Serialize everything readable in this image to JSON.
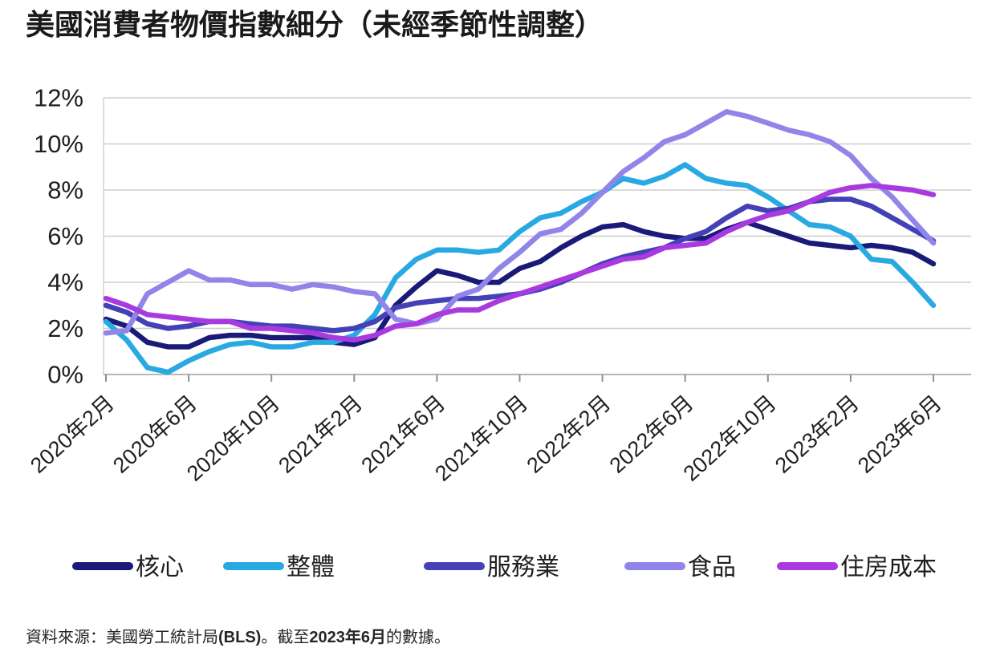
{
  "chart_data": {
    "type": "line",
    "title": "美國消費者物價指數細分（未經季節性調整）",
    "x_start": "2020年2月",
    "x_end": "2023年6月",
    "x_interval": "monthly",
    "x_tick_labels": [
      "2020年2月",
      "2020年6月",
      "2020年10月",
      "2021年2月",
      "2021年6月",
      "2021年10月",
      "2022年2月",
      "2022年6月",
      "2022年10月",
      "2023年2月",
      "2023年6月"
    ],
    "x_tick_indices": [
      0,
      4,
      8,
      12,
      16,
      20,
      24,
      28,
      32,
      36,
      40
    ],
    "y_tick_labels": [
      "0%",
      "2%",
      "4%",
      "6%",
      "8%",
      "10%",
      "12%"
    ],
    "ylim": [
      0,
      12
    ],
    "y_unit": "%",
    "grid": "horizontal",
    "legend_position": "bottom",
    "series": [
      {
        "name": "核心",
        "color": "#1a1a78",
        "values": [
          2.4,
          2.1,
          1.4,
          1.2,
          1.2,
          1.6,
          1.7,
          1.7,
          1.6,
          1.6,
          1.6,
          1.4,
          1.3,
          1.6,
          3.0,
          3.8,
          4.5,
          4.3,
          4.0,
          4.0,
          4.6,
          4.9,
          5.5,
          6.0,
          6.4,
          6.5,
          6.2,
          6.0,
          5.9,
          5.9,
          6.3,
          6.6,
          6.3,
          6.0,
          5.7,
          5.6,
          5.5,
          5.6,
          5.5,
          5.3,
          4.8
        ]
      },
      {
        "name": "整體",
        "color": "#29a9e2",
        "values": [
          2.3,
          1.5,
          0.3,
          0.1,
          0.6,
          1.0,
          1.3,
          1.4,
          1.2,
          1.2,
          1.4,
          1.4,
          1.7,
          2.6,
          4.2,
          5.0,
          5.4,
          5.4,
          5.3,
          5.4,
          6.2,
          6.8,
          7.0,
          7.5,
          7.9,
          8.5,
          8.3,
          8.6,
          9.1,
          8.5,
          8.3,
          8.2,
          7.7,
          7.1,
          6.5,
          6.4,
          6.0,
          5.0,
          4.9,
          4.0,
          3.0
        ]
      },
      {
        "name": "服務業",
        "color": "#4441b6",
        "values": [
          3.0,
          2.7,
          2.2,
          2.0,
          2.1,
          2.3,
          2.3,
          2.2,
          2.1,
          2.1,
          2.0,
          1.9,
          2.0,
          2.3,
          2.9,
          3.1,
          3.2,
          3.3,
          3.3,
          3.4,
          3.5,
          3.7,
          4.0,
          4.4,
          4.8,
          5.1,
          5.3,
          5.5,
          5.9,
          6.2,
          6.8,
          7.3,
          7.1,
          7.2,
          7.5,
          7.6,
          7.6,
          7.3,
          6.8,
          6.3,
          5.8
        ]
      },
      {
        "name": "食品",
        "color": "#9185e9",
        "values": [
          1.8,
          1.9,
          3.5,
          4.0,
          4.5,
          4.1,
          4.1,
          3.9,
          3.9,
          3.7,
          3.9,
          3.8,
          3.6,
          3.5,
          2.4,
          2.2,
          2.4,
          3.4,
          3.7,
          4.6,
          5.3,
          6.1,
          6.3,
          7.0,
          7.9,
          8.8,
          9.4,
          10.1,
          10.4,
          10.9,
          11.4,
          11.2,
          10.9,
          10.6,
          10.4,
          10.1,
          9.5,
          8.5,
          7.7,
          6.7,
          5.7
        ]
      },
      {
        "name": "住房成本",
        "color": "#a93ae0",
        "values": [
          3.3,
          3.0,
          2.6,
          2.5,
          2.4,
          2.3,
          2.3,
          2.0,
          2.0,
          1.9,
          1.8,
          1.6,
          1.5,
          1.7,
          2.1,
          2.2,
          2.6,
          2.8,
          2.8,
          3.2,
          3.5,
          3.8,
          4.1,
          4.4,
          4.7,
          5.0,
          5.1,
          5.5,
          5.6,
          5.7,
          6.2,
          6.6,
          6.9,
          7.1,
          7.5,
          7.9,
          8.1,
          8.2,
          8.1,
          8.0,
          7.8
        ]
      }
    ]
  },
  "source_note": {
    "parts": [
      {
        "text": "資料來源：美國勞工統計局",
        "bold": false
      },
      {
        "text": "(BLS)",
        "bold": true
      },
      {
        "text": "。截至",
        "bold": false
      },
      {
        "text": "2023年6月",
        "bold": true
      },
      {
        "text": "的數據。",
        "bold": false
      }
    ]
  }
}
